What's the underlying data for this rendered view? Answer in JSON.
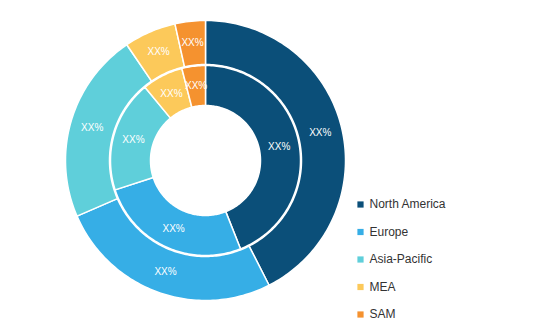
{
  "chart_data": {
    "type": "donut",
    "categories": [
      "North America",
      "Europe",
      "Asia-Pacific",
      "MEA",
      "SAM"
    ],
    "colors": [
      "#0b4f79",
      "#36aee6",
      "#5fcfda",
      "#fcc95a",
      "#f5922f"
    ],
    "series": [
      {
        "values": [
          42.5,
          26,
          22,
          6,
          3.5
        ],
        "value_labels": [
          "XX%",
          "XX%",
          "XX%",
          "XX%",
          "XX%"
        ]
      },
      {
        "values": [
          44,
          26,
          19,
          7,
          4
        ],
        "value_labels": [
          "XX%",
          "XX%",
          "XX%",
          "XX%",
          "XX%"
        ]
      }
    ],
    "data_labels": true,
    "legend": "right"
  }
}
